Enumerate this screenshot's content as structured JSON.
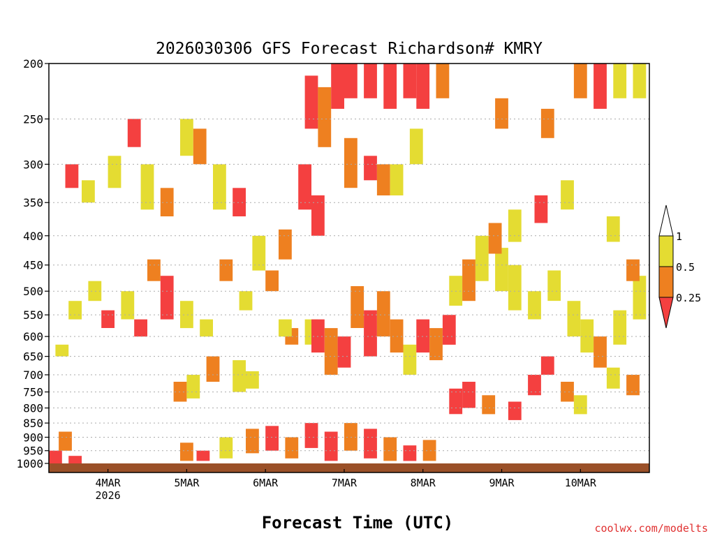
{
  "chart_data": {
    "type": "heatmap",
    "title": "2026030306 GFS Forecast Richardson# KMRY",
    "xlabel": "Forecast Time (UTC)",
    "ylabel": "",
    "credit": "coolwx.com/modelts",
    "y_scale": "log-pressure",
    "y_ticks": [
      200,
      250,
      300,
      350,
      400,
      450,
      500,
      550,
      600,
      650,
      700,
      750,
      800,
      850,
      900,
      950,
      1000
    ],
    "y_range": [
      200,
      1000
    ],
    "x_ticks": [
      {
        "label": "4MAR",
        "sublabel": "2026",
        "hour": 18
      },
      {
        "label": "5MAR",
        "sublabel": "",
        "hour": 42
      },
      {
        "label": "6MAR",
        "sublabel": "",
        "hour": 66
      },
      {
        "label": "7MAR",
        "sublabel": "",
        "hour": 90
      },
      {
        "label": "8MAR",
        "sublabel": "",
        "hour": 114
      },
      {
        "label": "9MAR",
        "sublabel": "",
        "hour": 138
      },
      {
        "label": "10MAR",
        "sublabel": "",
        "hour": 162
      }
    ],
    "x_range_hours": [
      0,
      183
    ],
    "grid": true,
    "legend": {
      "placement": "right",
      "bins": [
        {
          "label": "1",
          "color": "#ffffff"
        },
        {
          "label": "0.5",
          "color": "#e4dc32"
        },
        {
          "label": "0.25",
          "color": "#ee8020"
        },
        {
          "label": "",
          "color": "#f44040"
        }
      ]
    },
    "ground_color": "#9a5028",
    "colors": {
      "low": "#f44040",
      "mid": "#ee8020",
      "high": "#e4dc32"
    },
    "cells": [
      [
        0,
        950,
        1000,
        "low"
      ],
      [
        3,
        880,
        950,
        "mid"
      ],
      [
        6,
        970,
        1000,
        "low"
      ],
      [
        40,
        920,
        990,
        "mid"
      ],
      [
        45,
        950,
        990,
        "low"
      ],
      [
        52,
        900,
        980,
        "high"
      ],
      [
        60,
        870,
        960,
        "mid"
      ],
      [
        66,
        860,
        950,
        "low"
      ],
      [
        72,
        900,
        980,
        "mid"
      ],
      [
        78,
        850,
        940,
        "low"
      ],
      [
        84,
        880,
        990,
        "low"
      ],
      [
        90,
        850,
        950,
        "mid"
      ],
      [
        96,
        870,
        980,
        "low"
      ],
      [
        102,
        900,
        990,
        "mid"
      ],
      [
        108,
        930,
        990,
        "low"
      ],
      [
        114,
        910,
        990,
        "mid"
      ],
      [
        38,
        720,
        780,
        "mid"
      ],
      [
        42,
        700,
        770,
        "high"
      ],
      [
        48,
        650,
        720,
        "mid"
      ],
      [
        56,
        660,
        750,
        "high"
      ],
      [
        60,
        690,
        740,
        "high"
      ],
      [
        72,
        580,
        620,
        "mid"
      ],
      [
        78,
        560,
        620,
        "high"
      ],
      [
        80,
        560,
        640,
        "low"
      ],
      [
        84,
        580,
        700,
        "mid"
      ],
      [
        88,
        600,
        680,
        "low"
      ],
      [
        92,
        490,
        580,
        "mid"
      ],
      [
        96,
        540,
        650,
        "low"
      ],
      [
        100,
        500,
        600,
        "mid"
      ],
      [
        104,
        560,
        640,
        "mid"
      ],
      [
        108,
        620,
        700,
        "high"
      ],
      [
        112,
        560,
        640,
        "low"
      ],
      [
        116,
        580,
        660,
        "mid"
      ],
      [
        120,
        550,
        620,
        "low"
      ],
      [
        122,
        740,
        820,
        "low"
      ],
      [
        126,
        720,
        800,
        "low"
      ],
      [
        132,
        760,
        820,
        "mid"
      ],
      [
        140,
        780,
        840,
        "low"
      ],
      [
        146,
        700,
        760,
        "low"
      ],
      [
        150,
        650,
        700,
        "low"
      ],
      [
        156,
        720,
        780,
        "mid"
      ],
      [
        160,
        760,
        820,
        "high"
      ],
      [
        170,
        680,
        740,
        "high"
      ],
      [
        176,
        700,
        760,
        "mid"
      ],
      [
        122,
        470,
        530,
        "high"
      ],
      [
        126,
        440,
        520,
        "mid"
      ],
      [
        130,
        400,
        480,
        "high"
      ],
      [
        136,
        420,
        500,
        "high"
      ],
      [
        140,
        450,
        540,
        "high"
      ],
      [
        146,
        500,
        560,
        "high"
      ],
      [
        152,
        460,
        520,
        "high"
      ],
      [
        158,
        520,
        600,
        "high"
      ],
      [
        162,
        560,
        640,
        "high"
      ],
      [
        166,
        600,
        680,
        "mid"
      ],
      [
        172,
        540,
        620,
        "high"
      ],
      [
        178,
        470,
        560,
        "high"
      ],
      [
        134,
        380,
        430,
        "mid"
      ],
      [
        140,
        360,
        410,
        "high"
      ],
      [
        148,
        340,
        380,
        "low"
      ],
      [
        156,
        320,
        360,
        "high"
      ],
      [
        170,
        370,
        410,
        "high"
      ],
      [
        176,
        440,
        480,
        "mid"
      ],
      [
        78,
        210,
        260,
        "low"
      ],
      [
        82,
        220,
        280,
        "mid"
      ],
      [
        86,
        200,
        240,
        "low"
      ],
      [
        90,
        200,
        230,
        "low"
      ],
      [
        96,
        200,
        230,
        "low"
      ],
      [
        102,
        200,
        240,
        "low"
      ],
      [
        108,
        200,
        230,
        "low"
      ],
      [
        112,
        200,
        240,
        "low"
      ],
      [
        118,
        200,
        230,
        "mid"
      ],
      [
        90,
        270,
        330,
        "mid"
      ],
      [
        96,
        290,
        320,
        "low"
      ],
      [
        100,
        300,
        340,
        "mid"
      ],
      [
        104,
        300,
        340,
        "high"
      ],
      [
        110,
        260,
        300,
        "high"
      ],
      [
        136,
        230,
        260,
        "mid"
      ],
      [
        150,
        240,
        270,
        "mid"
      ],
      [
        160,
        200,
        230,
        "mid"
      ],
      [
        166,
        200,
        240,
        "low"
      ],
      [
        172,
        200,
        230,
        "high"
      ],
      [
        178,
        200,
        230,
        "high"
      ],
      [
        5,
        300,
        330,
        "low"
      ],
      [
        10,
        320,
        350,
        "high"
      ],
      [
        18,
        290,
        330,
        "high"
      ],
      [
        24,
        250,
        280,
        "low"
      ],
      [
        28,
        300,
        360,
        "high"
      ],
      [
        34,
        330,
        370,
        "mid"
      ],
      [
        40,
        250,
        290,
        "high"
      ],
      [
        44,
        260,
        300,
        "mid"
      ],
      [
        50,
        300,
        360,
        "high"
      ],
      [
        56,
        330,
        370,
        "low"
      ],
      [
        62,
        400,
        460,
        "high"
      ],
      [
        70,
        390,
        440,
        "mid"
      ],
      [
        76,
        300,
        360,
        "low"
      ],
      [
        80,
        340,
        400,
        "low"
      ],
      [
        6,
        520,
        560,
        "high"
      ],
      [
        12,
        480,
        520,
        "high"
      ],
      [
        16,
        540,
        580,
        "low"
      ],
      [
        22,
        500,
        560,
        "high"
      ],
      [
        26,
        560,
        600,
        "low"
      ],
      [
        30,
        440,
        480,
        "mid"
      ],
      [
        34,
        470,
        560,
        "low"
      ],
      [
        40,
        520,
        580,
        "high"
      ],
      [
        46,
        560,
        600,
        "high"
      ],
      [
        52,
        440,
        480,
        "mid"
      ],
      [
        58,
        500,
        540,
        "high"
      ],
      [
        66,
        460,
        500,
        "mid"
      ],
      [
        70,
        560,
        600,
        "high"
      ],
      [
        2,
        620,
        650,
        "high"
      ]
    ]
  }
}
